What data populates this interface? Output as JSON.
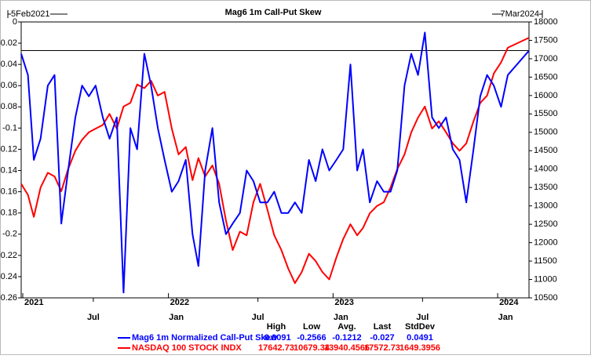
{
  "chart_data": {
    "type": "line",
    "title": "Mag6 1m Call-Put Skew",
    "start_label": "5Feb2021",
    "end_label": "7Mar2024",
    "xlim": [
      "2021-02-05",
      "2024-03-07"
    ],
    "x": [
      "2021-02-05",
      "2021-02-20",
      "2021-03-05",
      "2021-03-20",
      "2021-04-05",
      "2021-04-20",
      "2021-05-05",
      "2021-05-20",
      "2021-06-05",
      "2021-06-20",
      "2021-07-05",
      "2021-07-20",
      "2021-08-05",
      "2021-08-20",
      "2021-09-05",
      "2021-09-20",
      "2021-10-05",
      "2021-10-20",
      "2021-11-05",
      "2021-11-20",
      "2021-12-05",
      "2021-12-20",
      "2022-01-05",
      "2022-01-20",
      "2022-02-05",
      "2022-02-20",
      "2022-03-05",
      "2022-03-20",
      "2022-04-05",
      "2022-04-20",
      "2022-05-05",
      "2022-05-20",
      "2022-06-05",
      "2022-06-20",
      "2022-07-05",
      "2022-07-20",
      "2022-08-05",
      "2022-08-20",
      "2022-09-05",
      "2022-09-20",
      "2022-10-05",
      "2022-10-20",
      "2022-11-05",
      "2022-11-20",
      "2022-12-05",
      "2022-12-20",
      "2023-01-05",
      "2023-01-20",
      "2023-02-05",
      "2023-02-20",
      "2023-03-05",
      "2023-03-20",
      "2023-04-05",
      "2023-04-20",
      "2023-05-05",
      "2023-05-20",
      "2023-06-05",
      "2023-06-20",
      "2023-07-05",
      "2023-07-20",
      "2023-08-05",
      "2023-08-20",
      "2023-09-05",
      "2023-09-20",
      "2023-10-05",
      "2023-10-20",
      "2023-11-05",
      "2023-11-20",
      "2023-12-05",
      "2023-12-20",
      "2024-01-05",
      "2024-01-20",
      "2024-03-07"
    ],
    "xticks": [
      {
        "value": "2021-07-01",
        "label": "Jul"
      },
      {
        "value": "2022-01-01",
        "label": "Jan"
      },
      {
        "value": "2022-07-01",
        "label": "Jul"
      },
      {
        "value": "2023-01-01",
        "label": "Jan"
      },
      {
        "value": "2023-07-01",
        "label": "Jul"
      },
      {
        "value": "2024-01-01",
        "label": "Jan"
      }
    ],
    "year_labels": [
      2021,
      2022,
      2023,
      2024
    ],
    "ylim": [
      -0.26,
      0
    ],
    "yticks": [
      0,
      -0.02,
      -0.04,
      -0.06,
      -0.08,
      -0.1,
      -0.12,
      -0.14,
      -0.16,
      -0.18,
      -0.2,
      -0.22,
      -0.24,
      -0.26
    ],
    "y2lim": [
      10500,
      18000
    ],
    "y2ticks": [
      18000,
      17500,
      17000,
      16500,
      16000,
      15500,
      15000,
      14500,
      14000,
      13500,
      13000,
      12500,
      12000,
      11500,
      11000,
      10500
    ],
    "hline": -0.027,
    "stat_headers": [
      "High",
      "Low",
      "Avg.",
      "Last",
      "StdDev"
    ],
    "series": [
      {
        "name": "Mag6 1m Normalized Call-Put Skew",
        "color": "#0000ff",
        "axis": "y",
        "stats": [
          -0.0091,
          -0.2566,
          -0.1212,
          -0.027,
          0.0491
        ],
        "values": [
          -0.03,
          -0.05,
          -0.13,
          -0.11,
          -0.06,
          -0.05,
          -0.19,
          -0.14,
          -0.09,
          -0.06,
          -0.07,
          -0.06,
          -0.09,
          -0.11,
          -0.09,
          -0.255,
          -0.1,
          -0.12,
          -0.03,
          -0.06,
          -0.1,
          -0.13,
          -0.16,
          -0.15,
          -0.13,
          -0.2,
          -0.23,
          -0.14,
          -0.1,
          -0.17,
          -0.2,
          -0.19,
          -0.18,
          -0.14,
          -0.15,
          -0.17,
          -0.17,
          -0.16,
          -0.18,
          -0.18,
          -0.17,
          -0.18,
          -0.13,
          -0.15,
          -0.12,
          -0.14,
          -0.13,
          -0.12,
          -0.04,
          -0.14,
          -0.12,
          -0.17,
          -0.15,
          -0.16,
          -0.16,
          -0.14,
          -0.06,
          -0.03,
          -0.05,
          -0.01,
          -0.09,
          -0.1,
          -0.09,
          -0.12,
          -0.13,
          -0.17,
          -0.12,
          -0.07,
          -0.05,
          -0.06,
          -0.08,
          -0.05,
          -0.027
        ]
      },
      {
        "name": "NASDAQ 100 STOCK INDX",
        "color": "#ff0000",
        "axis": "y2",
        "stats": [
          17642.73,
          10679.34,
          13940.4566,
          17572.73,
          1649.3956
        ],
        "values": [
          13600,
          13300,
          12700,
          13500,
          13900,
          13800,
          13400,
          14000,
          14500,
          14800,
          15000,
          15100,
          15200,
          15500,
          15100,
          15700,
          15800,
          16300,
          16200,
          16400,
          16000,
          16100,
          15100,
          14400,
          14600,
          13700,
          14300,
          13800,
          14100,
          13600,
          12600,
          11800,
          12300,
          12200,
          13100,
          13600,
          12900,
          12200,
          11800,
          11300,
          10900,
          11200,
          11700,
          11500,
          11200,
          11000,
          11600,
          12100,
          12500,
          12200,
          12400,
          12800,
          13000,
          13100,
          13500,
          14000,
          14400,
          15000,
          15400,
          15700,
          15100,
          15300,
          15000,
          14700,
          14500,
          14700,
          15300,
          15800,
          16000,
          16600,
          16900,
          17300,
          17572.73
        ]
      }
    ]
  }
}
